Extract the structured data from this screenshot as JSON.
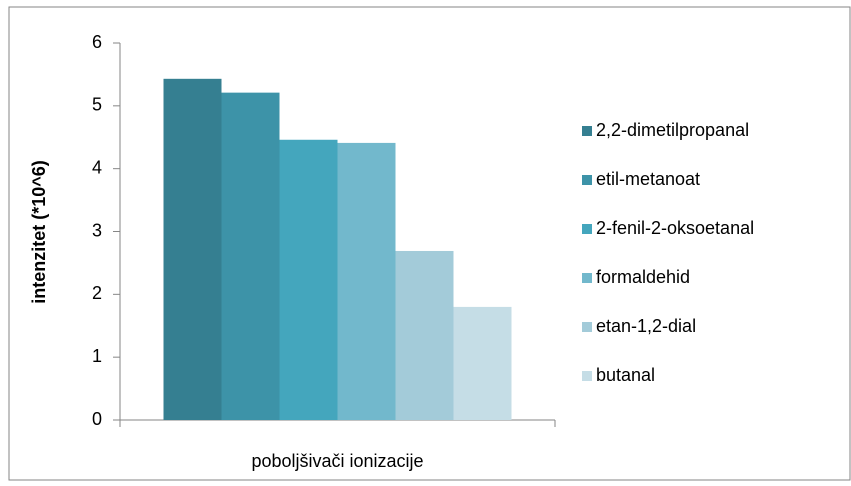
{
  "chart_data": {
    "type": "bar",
    "y_label": "intenzitet (*10^6)",
    "categories": [
      "poboljšivači ionizacije"
    ],
    "series": [
      {
        "name": "2,2-dimetilpropanal",
        "color": "#357f91",
        "values": [
          5.43
        ]
      },
      {
        "name": "etil-metanoat",
        "color": "#3d93a8",
        "values": [
          5.21
        ]
      },
      {
        "name": "2-fenil-2-oksoetanal",
        "color": "#44a6bd",
        "values": [
          4.46
        ]
      },
      {
        "name": "formaldehid",
        "color": "#72b8cc",
        "values": [
          4.41
        ]
      },
      {
        "name": "etan-1,2-dial",
        "color": "#a3cbd9",
        "values": [
          2.69
        ]
      },
      {
        "name": "butanal",
        "color": "#c5dde6",
        "values": [
          1.8
        ]
      }
    ],
    "ylim": [
      0,
      6
    ],
    "yticks": [
      0,
      1,
      2,
      3,
      4,
      5,
      6
    ],
    "grid": false,
    "legend": "right"
  }
}
